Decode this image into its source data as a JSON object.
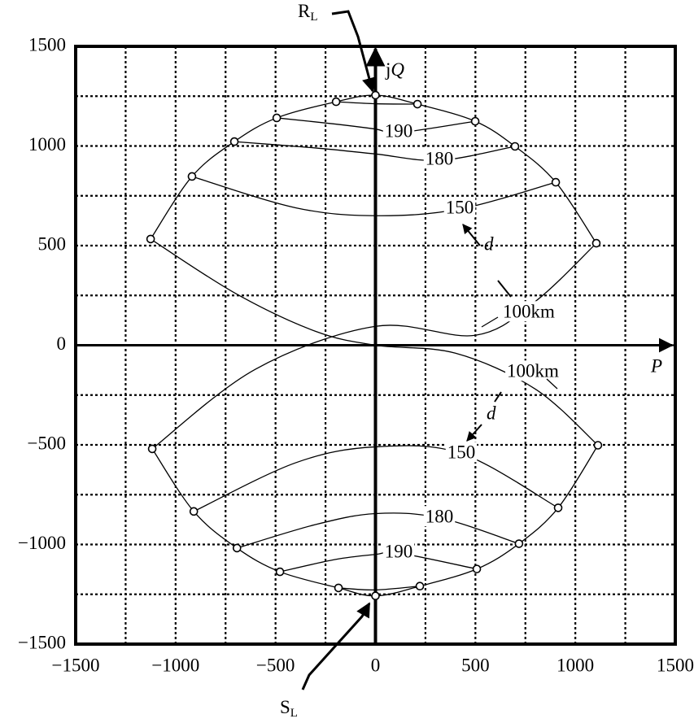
{
  "chart_data": {
    "type": "line",
    "xlim": [
      -1500,
      1500
    ],
    "ylim": [
      -1500,
      1500
    ],
    "xticks": [
      {
        "value": -1500,
        "label": "−1500"
      },
      {
        "value": -1000,
        "label": "−1000"
      },
      {
        "value": -500,
        "label": "−500"
      },
      0,
      500,
      1000,
      1500
    ],
    "yticks": [
      {
        "value": -1500,
        "label": "−1500"
      },
      {
        "value": -1000,
        "label": "−1000"
      },
      {
        "value": -500,
        "label": "−500"
      },
      0,
      500,
      1000,
      1500
    ],
    "xminorticks": [
      -1250,
      -750,
      -250,
      250,
      750,
      1250
    ],
    "yminorticks": [
      -1250,
      -750,
      -250,
      250,
      750,
      1250
    ],
    "grid": true,
    "series": [
      {
        "x": [
          -1125,
          -918,
          -706,
          -494,
          -197,
          0,
          210,
          499,
          698,
          902,
          1105
        ],
        "values": [
          533,
          847,
          1022,
          1141,
          1222,
          1255,
          1210,
          1124,
          998,
          818,
          512
        ],
        "markers": true
      },
      {
        "name": "100km",
        "x": [
          -1125,
          -700,
          -300,
          0,
          400,
          800,
          1113
        ],
        "values": [
          533,
          260,
          70,
          0,
          -40,
          -220,
          -502
        ]
      },
      {
        "name": "150",
        "x": [
          -918,
          -400,
          0,
          420,
          902
        ],
        "values": [
          847,
          690,
          650,
          683,
          818
        ]
      },
      {
        "name": "180",
        "x": [
          -706,
          -300,
          0,
          320,
          698
        ],
        "values": [
          1022,
          990,
          960,
          928,
          998
        ]
      },
      {
        "name": "190",
        "x": [
          -494,
          -200,
          0,
          118,
          499
        ],
        "values": [
          1141,
          1110,
          1085,
          1067,
          1124
        ]
      },
      {
        "x": [
          -197,
          0,
          210
        ],
        "values": [
          1222,
          1212,
          1210
        ]
      },
      {
        "x": [
          -1117,
          -909,
          -693,
          -478,
          -185,
          0,
          222,
          507,
          718,
          914,
          1113
        ],
        "values": [
          -520,
          -834,
          -1018,
          -1137,
          -1218,
          -1258,
          -1209,
          -1123,
          -996,
          -816,
          -502
        ],
        "markers": true
      },
      {
        "name": "100km",
        "x": [
          -1117,
          -600,
          0,
          500,
          800,
          1105
        ],
        "values": [
          -520,
          -120,
          95,
          50,
          220,
          512
        ]
      },
      {
        "name": "150",
        "x": [
          -909,
          -400,
          0,
          431,
          914
        ],
        "values": [
          -834,
          -590,
          -510,
          -544,
          -816
        ]
      },
      {
        "name": "180",
        "x": [
          -693,
          -300,
          0,
          320,
          718
        ],
        "values": [
          -1018,
          -900,
          -845,
          -866,
          -996
        ]
      },
      {
        "name": "190",
        "x": [
          -478,
          -200,
          0,
          118,
          507
        ],
        "values": [
          -1137,
          -1075,
          -1050,
          -1043,
          -1123
        ]
      },
      {
        "x": [
          -185,
          0,
          222
        ],
        "values": [
          -1218,
          -1228,
          -1209
        ]
      }
    ],
    "annotations": {
      "receiving_end": {
        "main": "R",
        "sub": "L"
      },
      "sending_end": {
        "main": "S",
        "sub": "L"
      },
      "q_axis": {
        "main": "j",
        "italic": "Q"
      },
      "p_axis": "P",
      "d_upper": "d",
      "d_lower": "d"
    }
  }
}
